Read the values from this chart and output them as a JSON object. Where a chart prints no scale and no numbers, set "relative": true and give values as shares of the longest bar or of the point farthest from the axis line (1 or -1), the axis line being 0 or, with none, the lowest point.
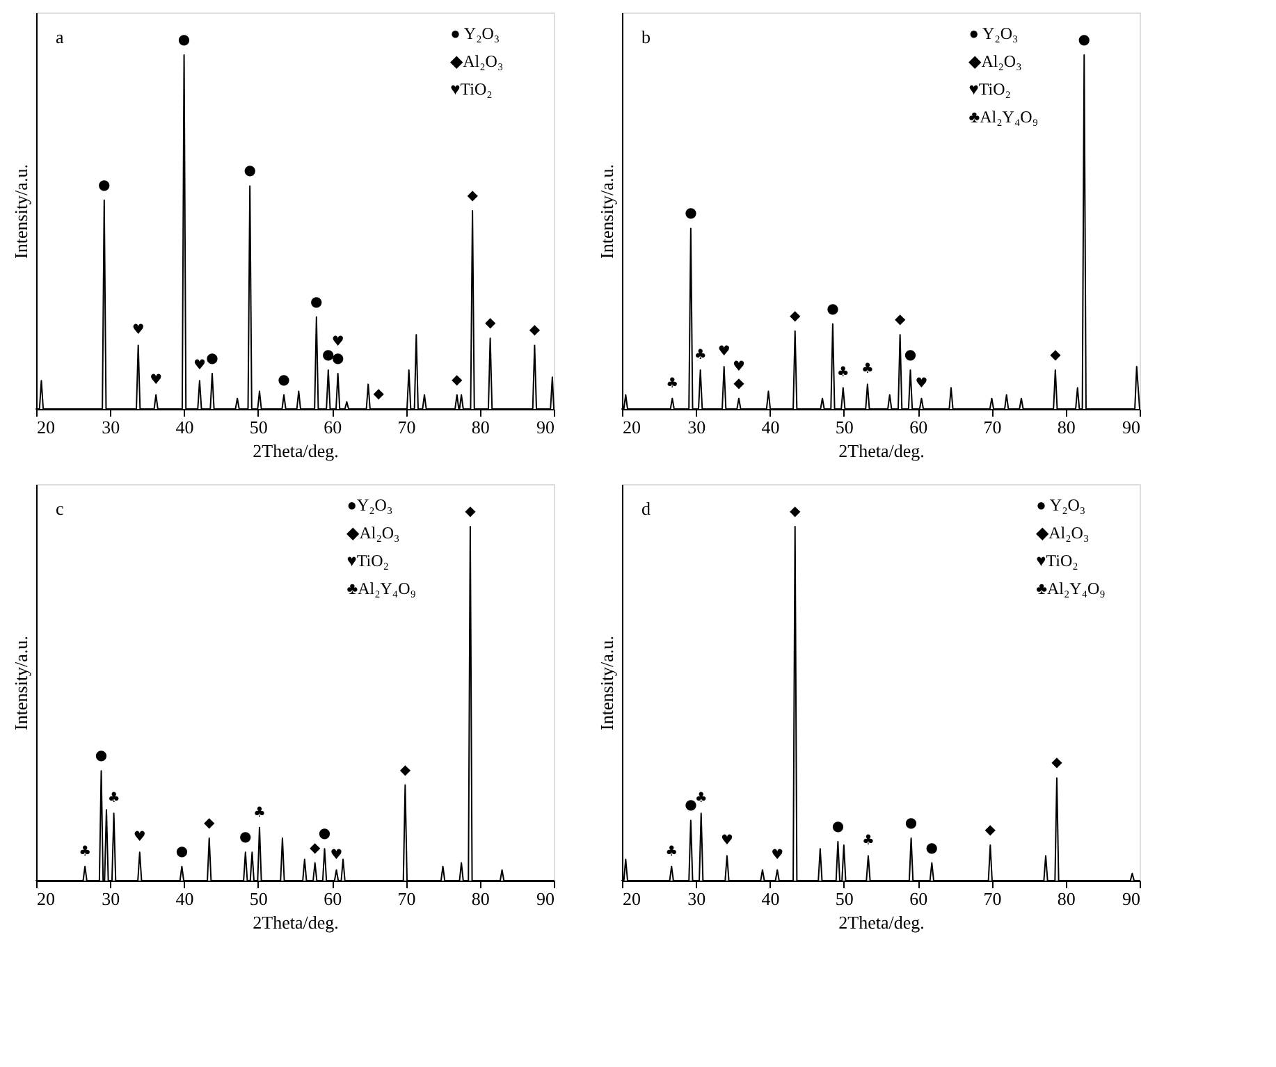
{
  "chart_data": [
    {
      "type": "line",
      "relative": true,
      "xlabel": "2Theta/deg.",
      "ylabel": "Intensity/a.u.",
      "xlim": [
        20,
        90
      ],
      "xticks": [
        20,
        30,
        40,
        50,
        60,
        70,
        80,
        90
      ],
      "x": [
        20,
        20.45,
        20.7,
        20.95,
        28.95,
        29.2,
        29.45,
        33.55,
        33.8,
        34.05,
        35.95,
        36.2,
        36.45,
        39.75,
        40.0,
        40.25,
        41.85,
        42.1,
        42.35,
        43.55,
        43.8,
        44.05,
        46.95,
        47.2,
        47.45,
        48.65,
        48.9,
        49.15,
        49.95,
        50.2,
        50.45,
        53.25,
        53.5,
        53.75,
        55.25,
        55.5,
        55.75,
        57.65,
        57.9,
        58.15,
        59.25,
        59.5,
        59.75,
        60.55,
        60.8,
        61.05,
        61.75,
        62.0,
        62.25,
        64.65,
        64.9,
        65.15,
        70.15,
        70.4,
        70.65,
        71.15,
        71.4,
        71.65,
        72.25,
        72.5,
        72.75,
        76.65,
        76.9,
        77.15,
        77.25,
        77.5,
        77.75,
        78.75,
        79.0,
        79.25,
        81.15,
        81.4,
        81.65,
        87.15,
        87.4,
        87.65,
        89.55,
        89.8,
        90
      ],
      "series": [
        {
          "color": "#000000",
          "values": [
            0,
            0,
            0.08,
            0,
            0,
            0.59,
            0,
            0,
            0.18,
            0,
            0,
            0.04,
            0,
            0,
            1,
            0,
            0,
            0.08,
            0,
            0,
            0.1,
            0,
            0,
            0.03,
            0,
            0,
            0.63,
            0,
            0,
            0.05,
            0,
            0,
            0.04,
            0,
            0,
            0.05,
            0,
            0,
            0.26,
            0,
            0,
            0.11,
            0,
            0,
            0.1,
            0,
            0,
            0.02,
            0,
            0,
            0.07,
            0,
            0,
            0.11,
            0,
            0,
            0.21,
            0,
            0,
            0.04,
            0,
            0,
            0.04,
            0,
            0,
            0.04,
            0,
            0,
            0.56,
            0,
            0,
            0.2,
            0,
            0,
            0.18,
            0,
            0,
            0.09,
            0
          ]
        }
      ],
      "annotations": [
        "a",
        "● Y₂O₃",
        "◆Al₂O₃",
        "♥TiO₂",
        {
          "text": "●",
          "x": 29.2,
          "y": 0.59
        },
        {
          "text": "♥",
          "x": 33.8,
          "y": 0.18
        },
        {
          "text": "♥",
          "x": 36.2,
          "y": 0.04
        },
        {
          "text": "●",
          "x": 40.0,
          "y": 1
        },
        {
          "text": "♥",
          "x": 42.1,
          "y": 0.08
        },
        {
          "text": "●",
          "x": 43.8,
          "y": 0.1
        },
        {
          "text": "●",
          "x": 48.9,
          "y": 0.63
        },
        {
          "text": "●",
          "x": 53.5,
          "y": 0.04
        },
        {
          "text": "●",
          "x": 57.9,
          "y": 0.26
        },
        {
          "text": "●",
          "x": 59.5,
          "y": 0.11
        },
        {
          "text": "●",
          "x": 60.8,
          "y": 0.1
        },
        {
          "text": "♥",
          "x": 60.8,
          "y": 0.1
        },
        {
          "text": "◆",
          "x": 66.3,
          "y": 0
        },
        {
          "text": "◆",
          "x": 76.9,
          "y": 0.04
        },
        {
          "text": "◆",
          "x": 79.0,
          "y": 0.56
        },
        {
          "text": "◆",
          "x": 81.4,
          "y": 0.2
        },
        {
          "text": "◆",
          "x": 87.4,
          "y": 0.18
        }
      ]
    },
    {
      "type": "line",
      "relative": true,
      "xlabel": "2Theta/deg.",
      "ylabel": "Intensity/a.u.",
      "xlim": [
        20,
        90
      ],
      "xticks": [
        20,
        30,
        40,
        50,
        60,
        70,
        80,
        90
      ],
      "x": [
        20,
        20.25,
        20.5,
        20.75,
        26.55,
        26.8,
        27.05,
        29.05,
        29.3,
        29.55,
        30.35,
        30.6,
        30.85,
        33.55,
        33.8,
        34.05,
        35.55,
        35.8,
        36.05,
        39.55,
        39.8,
        40.05,
        43.15,
        43.4,
        43.65,
        46.85,
        47.1,
        47.35,
        48.25,
        48.5,
        48.75,
        49.65,
        49.9,
        50.15,
        52.95,
        53.2,
        53.45,
        55.95,
        56.2,
        56.45,
        57.35,
        57.6,
        57.85,
        58.75,
        59.0,
        59.25,
        60.25,
        60.5,
        60.75,
        64.25,
        64.5,
        64.75,
        69.75,
        70.0,
        70.25,
        71.75,
        72.0,
        72.25,
        73.75,
        74.0,
        74.25,
        78.35,
        78.6,
        78.85,
        81.35,
        81.6,
        81.85,
        82.25,
        82.5,
        82.75,
        89.35,
        89.6,
        90
      ],
      "series": [
        {
          "color": "#000000",
          "values": [
            0,
            0,
            0.04,
            0,
            0,
            0.03,
            0,
            0,
            0.51,
            0,
            0,
            0.11,
            0,
            0,
            0.12,
            0,
            0,
            0.03,
            0,
            0,
            0.05,
            0,
            0,
            0.22,
            0,
            0,
            0.03,
            0,
            0,
            0.24,
            0,
            0,
            0.06,
            0,
            0,
            0.07,
            0,
            0,
            0.04,
            0,
            0,
            0.21,
            0,
            0,
            0.11,
            0,
            0,
            0.03,
            0,
            0,
            0.06,
            0,
            0,
            0.03,
            0,
            0,
            0.04,
            0,
            0,
            0.03,
            0,
            0,
            0.11,
            0,
            0,
            0.06,
            0,
            0,
            1,
            0,
            0,
            0.12,
            0
          ]
        }
      ],
      "annotations": [
        "b",
        "● Y₂O₃",
        "◆Al₂O₃",
        "♥TiO₂",
        "♣Al₂Y₄O₉",
        {
          "text": "♣",
          "x": 26.8,
          "y": 0.03
        },
        {
          "text": "●",
          "x": 29.3,
          "y": 0.51
        },
        {
          "text": "♣",
          "x": 30.6,
          "y": 0.11
        },
        {
          "text": "♥",
          "x": 33.8,
          "y": 0.12
        },
        {
          "text": "◆",
          "x": 35.8,
          "y": 0.03
        },
        {
          "text": "♥",
          "x": 35.8,
          "y": 0.03
        },
        {
          "text": "◆",
          "x": 43.4,
          "y": 0.22
        },
        {
          "text": "●",
          "x": 48.5,
          "y": 0.24
        },
        {
          "text": "♣",
          "x": 49.9,
          "y": 0.06
        },
        {
          "text": "♣",
          "x": 53.2,
          "y": 0.07
        },
        {
          "text": "◆",
          "x": 57.6,
          "y": 0.21
        },
        {
          "text": "●",
          "x": 59.0,
          "y": 0.11
        },
        {
          "text": "♥",
          "x": 60.5,
          "y": 0.03
        },
        {
          "text": "◆",
          "x": 78.6,
          "y": 0.11
        },
        {
          "text": "●",
          "x": 82.5,
          "y": 1
        }
      ]
    },
    {
      "type": "line",
      "relative": true,
      "xlabel": "2Theta/deg.",
      "ylabel": "Intensity/a.u.",
      "xlim": [
        20,
        90
      ],
      "xticks": [
        20,
        30,
        40,
        50,
        60,
        70,
        80,
        90
      ],
      "x": [
        20,
        26.35,
        26.6,
        26.85,
        28.55,
        28.8,
        29.05,
        29.25,
        29.5,
        29.75,
        30.25,
        30.5,
        30.75,
        33.75,
        34.0,
        34.25,
        39.45,
        39.7,
        39.95,
        43.15,
        43.4,
        43.65,
        48.05,
        48.3,
        48.55,
        48.95,
        49.2,
        49.45,
        49.95,
        50.2,
        50.45,
        53.05,
        53.3,
        53.55,
        56.05,
        56.3,
        56.55,
        57.45,
        57.7,
        57.95,
        58.75,
        59.0,
        59.25,
        60.35,
        60.6,
        60.85,
        61.25,
        61.5,
        61.75,
        69.65,
        69.9,
        70.15,
        74.75,
        75.0,
        75.25,
        77.25,
        77.5,
        77.75,
        78.45,
        78.7,
        78.95,
        82.75,
        83.0,
        83.25,
        90
      ],
      "series": [
        {
          "color": "#000000",
          "values": [
            0,
            0,
            0.04,
            0,
            0,
            0.31,
            0,
            0,
            0.2,
            0,
            0,
            0.19,
            0,
            0,
            0.08,
            0,
            0,
            0.04,
            0,
            0,
            0.12,
            0,
            0,
            0.08,
            0,
            0,
            0.08,
            0,
            0,
            0.15,
            0,
            0,
            0.12,
            0,
            0,
            0.06,
            0,
            0,
            0.05,
            0,
            0,
            0.09,
            0,
            0,
            0.03,
            0,
            0,
            0.06,
            0,
            0,
            0.27,
            0,
            0,
            0.04,
            0,
            0,
            0.05,
            0,
            0,
            1,
            0,
            0,
            0.03,
            0,
            0
          ]
        }
      ],
      "annotations": [
        "c",
        "●Y₂O₃",
        "◆Al₂O₃",
        "♥TiO₂",
        "♣Al₂Y₄O₉",
        {
          "text": "♣",
          "x": 26.6,
          "y": 0.04
        },
        {
          "text": "●",
          "x": 28.8,
          "y": 0.31
        },
        {
          "text": "♣",
          "x": 30.5,
          "y": 0.19
        },
        {
          "text": "♥",
          "x": 34.0,
          "y": 0.08
        },
        {
          "text": "●",
          "x": 39.7,
          "y": 0.04
        },
        {
          "text": "◆",
          "x": 43.4,
          "y": 0.12
        },
        {
          "text": "●",
          "x": 48.3,
          "y": 0.08
        },
        {
          "text": "♣",
          "x": 50.2,
          "y": 0.15
        },
        {
          "text": "◆",
          "x": 57.7,
          "y": 0.05
        },
        {
          "text": "●",
          "x": 59.0,
          "y": 0.09
        },
        {
          "text": "♥",
          "x": 60.6,
          "y": 0.03
        },
        {
          "text": "◆",
          "x": 69.9,
          "y": 0.27
        },
        {
          "text": "◆",
          "x": 78.7,
          "y": 1
        }
      ]
    },
    {
      "type": "line",
      "relative": true,
      "xlabel": "2Theta/deg.",
      "ylabel": "Intensity/a.u.",
      "xlim": [
        20,
        90
      ],
      "xticks": [
        20,
        30,
        40,
        50,
        60,
        70,
        80,
        90
      ],
      "x": [
        20,
        20.25,
        20.5,
        20.75,
        26.45,
        26.7,
        26.95,
        29.05,
        29.3,
        29.55,
        30.45,
        30.7,
        30.95,
        33.95,
        34.2,
        34.45,
        38.75,
        39.0,
        39.25,
        40.75,
        41.0,
        41.25,
        43.15,
        43.4,
        43.65,
        46.55,
        46.8,
        47.05,
        48.95,
        49.2,
        49.45,
        49.75,
        50.0,
        50.25,
        53.05,
        53.3,
        53.55,
        58.85,
        59.1,
        59.35,
        61.65,
        61.9,
        62.15,
        69.55,
        69.8,
        70.05,
        77.05,
        77.3,
        77.55,
        78.55,
        78.8,
        79.05,
        88.75,
        89.0,
        89.25,
        90
      ],
      "series": [
        {
          "color": "#000000",
          "values": [
            0,
            0,
            0.06,
            0,
            0,
            0.04,
            0,
            0,
            0.17,
            0,
            0,
            0.19,
            0,
            0,
            0.07,
            0,
            0,
            0.03,
            0,
            0,
            0.03,
            0,
            0,
            1,
            0,
            0,
            0.09,
            0,
            0,
            0.11,
            0,
            0,
            0.1,
            0,
            0,
            0.07,
            0,
            0,
            0.12,
            0,
            0,
            0.05,
            0,
            0,
            0.1,
            0,
            0,
            0.07,
            0,
            0,
            0.29,
            0,
            0,
            0.02,
            0,
            0
          ]
        }
      ],
      "annotations": [
        "d",
        "● Y₂O₃",
        "◆Al₂O₃",
        "♥TiO₂",
        "♣Al₂Y₄O₉",
        {
          "text": "♣",
          "x": 26.7,
          "y": 0.04
        },
        {
          "text": "●",
          "x": 29.3,
          "y": 0.17
        },
        {
          "text": "♣",
          "x": 30.7,
          "y": 0.19
        },
        {
          "text": "♥",
          "x": 34.2,
          "y": 0.07
        },
        {
          "text": "♥",
          "x": 41.0,
          "y": 0.03
        },
        {
          "text": "◆",
          "x": 43.4,
          "y": 1
        },
        {
          "text": "●",
          "x": 49.2,
          "y": 0.11
        },
        {
          "text": "♣",
          "x": 53.3,
          "y": 0.07
        },
        {
          "text": "●",
          "x": 59.1,
          "y": 0.12
        },
        {
          "text": "●",
          "x": 61.9,
          "y": 0.05
        },
        {
          "text": "◆",
          "x": 69.8,
          "y": 0.1
        },
        {
          "text": "◆",
          "x": 78.8,
          "y": 0.29
        }
      ]
    }
  ]
}
